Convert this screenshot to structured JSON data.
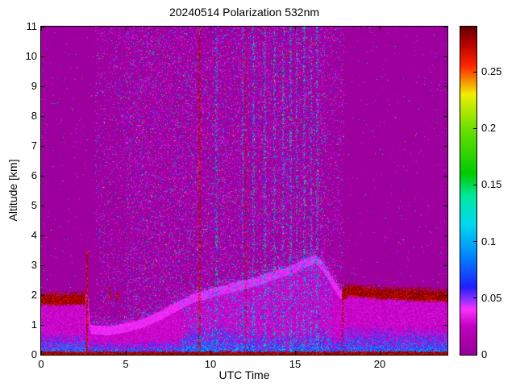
{
  "chart_data": {
    "type": "heatmap",
    "title": "20240514 Polarization 532nm",
    "xlabel": "UTC Time",
    "ylabel": "Altitude [km]",
    "xlim": [
      0,
      24
    ],
    "ylim": [
      0,
      11
    ],
    "xticks": [
      0,
      5,
      10,
      15,
      20
    ],
    "yticks": [
      0,
      1,
      2,
      3,
      4,
      5,
      6,
      7,
      8,
      9,
      10,
      11
    ],
    "grid": false,
    "colorbar": {
      "position": "right",
      "vmin": 0,
      "vmax": 0.29,
      "ticks": [
        0,
        0.05,
        0.1,
        0.15,
        0.2,
        0.25
      ],
      "tick_labels": [
        "0",
        "0.05",
        "0.1",
        "0.15",
        "0.2",
        "0.25"
      ],
      "stops": [
        [
          0.0,
          "#980098"
        ],
        [
          0.025,
          "#C000C0"
        ],
        [
          0.04,
          "#FF30FF"
        ],
        [
          0.05,
          "#8030FF"
        ],
        [
          0.06,
          "#2020FF"
        ],
        [
          0.09,
          "#0090FF"
        ],
        [
          0.115,
          "#00D8F0"
        ],
        [
          0.14,
          "#00E8A0"
        ],
        [
          0.16,
          "#00CC00"
        ],
        [
          0.2,
          "#70E000"
        ],
        [
          0.23,
          "#F0F000"
        ],
        [
          0.255,
          "#FF2800"
        ],
        [
          0.275,
          "#B80000"
        ],
        [
          0.29,
          "#600000"
        ]
      ]
    },
    "content": {
      "description": "Lidar depolarization time-height curtain: magenta background (~0), speckle noise aloft between ~3 and ~18 UTC, aerosol boundary layer rising from ~1 km to ~3.4 km peaking near 16 UTC, dark-red high-depolarization cap near 2 km before 2.6 UTC and after 17.8 UTC, dark-red surface return line, blue low-values band near the surface.",
      "seed": 20240514,
      "boundary_layer_top_km": [
        [
          0,
          2.05
        ],
        [
          2.55,
          2.05
        ],
        [
          2.75,
          2.0
        ],
        [
          2.9,
          1.0
        ],
        [
          4,
          0.95
        ],
        [
          5,
          1.05
        ],
        [
          6,
          1.2
        ],
        [
          7,
          1.45
        ],
        [
          8,
          1.75
        ],
        [
          9,
          2.05
        ],
        [
          10,
          2.2
        ],
        [
          11,
          2.35
        ],
        [
          12,
          2.5
        ],
        [
          13,
          2.65
        ],
        [
          14,
          2.85
        ],
        [
          15,
          3.05
        ],
        [
          15.7,
          3.25
        ],
        [
          16.2,
          3.35
        ],
        [
          16.6,
          3.15
        ],
        [
          17.2,
          2.6
        ],
        [
          17.7,
          2.15
        ],
        [
          18.2,
          2.35
        ],
        [
          19,
          2.3
        ],
        [
          20,
          2.25
        ],
        [
          22,
          2.2
        ],
        [
          24,
          2.15
        ]
      ],
      "bottom_blue_top_km": [
        [
          0,
          0.8
        ],
        [
          2.5,
          0.8
        ],
        [
          2.9,
          0.5
        ],
        [
          5,
          0.45
        ],
        [
          8,
          0.55
        ],
        [
          9,
          1.05
        ],
        [
          11,
          1.0
        ],
        [
          13,
          0.75
        ],
        [
          15,
          0.8
        ],
        [
          16.5,
          0.9
        ],
        [
          17.6,
          0.6
        ],
        [
          18,
          1.05
        ],
        [
          20,
          1.0
        ],
        [
          22,
          0.95
        ],
        [
          24,
          0.9
        ]
      ],
      "surface_line": {
        "top_km": 0.08,
        "value": 0.275
      },
      "cap_intervals_utc": [
        [
          0,
          2.6
        ],
        [
          17.75,
          24
        ]
      ],
      "cap_thickness_km": 0.38,
      "cap_value": 0.275,
      "vertical_lines": [
        {
          "t": 2.7,
          "alt_min": 0,
          "alt_max": 3.45,
          "density": 0.8
        },
        {
          "t": 4.05,
          "alt_min": 1.8,
          "alt_max": 2.3,
          "density": 0.85
        },
        {
          "t": 4.5,
          "alt_min": 1.8,
          "alt_max": 2.1,
          "density": 0.85
        },
        {
          "t": 9.35,
          "alt_min": 0,
          "alt_max": 11,
          "density": 0.5
        },
        {
          "t": 12.1,
          "alt_min": 0,
          "alt_max": 11,
          "density": 0.28
        },
        {
          "t": 17.8,
          "alt_min": 0,
          "alt_max": 2.45,
          "density": 0.45
        }
      ],
      "noise_stripes_utc": [
        10.35,
        11.9,
        12.55,
        13.2,
        13.8,
        14.3,
        14.75,
        15.1,
        15.55,
        15.95,
        16.3
      ],
      "speckle_time_range_utc": [
        3.2,
        17.9
      ]
    }
  }
}
